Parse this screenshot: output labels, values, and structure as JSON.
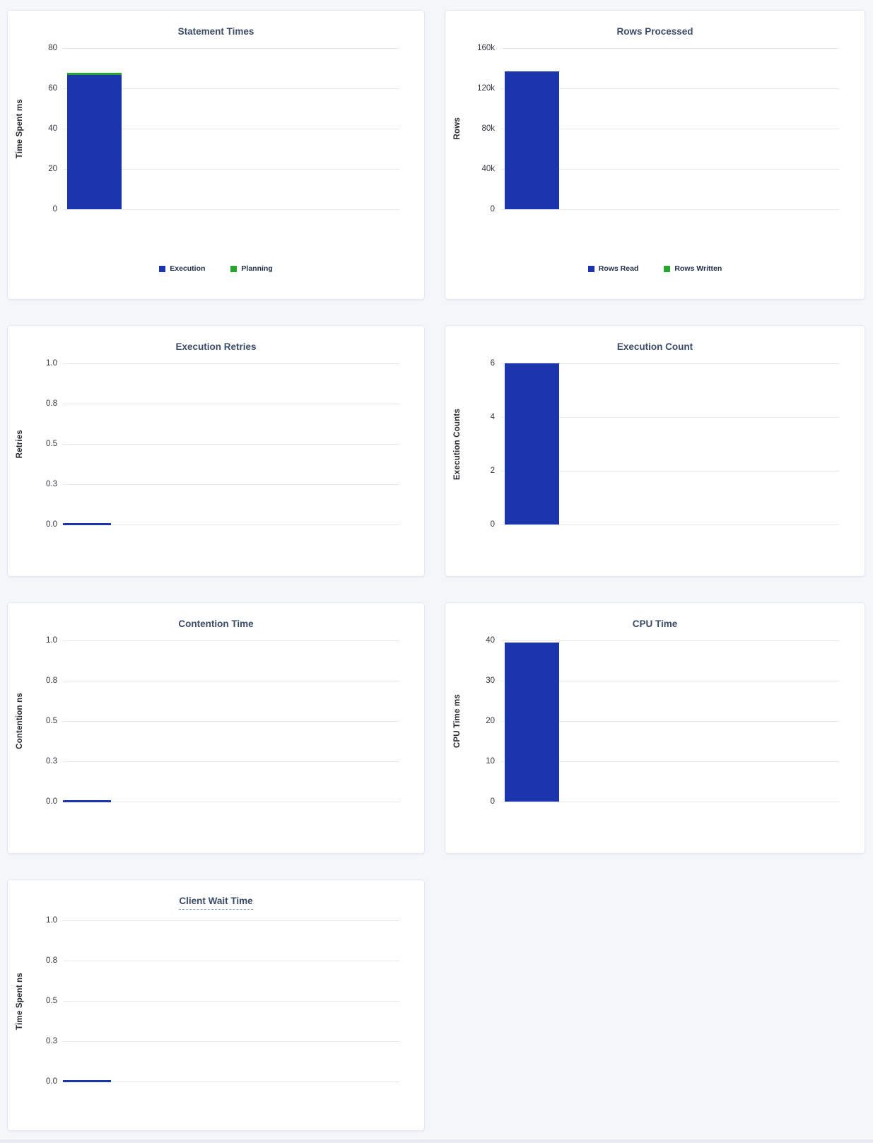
{
  "colors": {
    "blue": "#1B35AD",
    "green": "#28A52E",
    "title": "#3B4C68",
    "background": "#F4F6FA",
    "gridline": "#E8E9EC"
  },
  "chart_data": [
    {
      "type": "bar",
      "title": "Statement Times",
      "ylabel": "Time Spent ms",
      "ylim": [
        0,
        80
      ],
      "yticks_top_to_bottom": [
        "80",
        "60",
        "40",
        "20",
        "0"
      ],
      "series": [
        {
          "name": "Execution",
          "value": 66.8,
          "color": "blue"
        },
        {
          "name": "Planning",
          "value": 0.9,
          "color": "green"
        }
      ],
      "legend": [
        {
          "label": "Execution",
          "color": "blue"
        },
        {
          "label": "Planning",
          "color": "green"
        }
      ],
      "stacked": true,
      "grid": true,
      "legend_position": "bottom-center"
    },
    {
      "type": "bar",
      "title": "Rows Processed",
      "ylabel": "Rows",
      "ylim": [
        0,
        160000
      ],
      "yticks_top_to_bottom": [
        "160k",
        "120k",
        "80k",
        "40k",
        "0"
      ],
      "series": [
        {
          "name": "Rows Read",
          "value": 137000,
          "color": "blue"
        },
        {
          "name": "Rows Written",
          "value": 0,
          "color": "green"
        }
      ],
      "legend": [
        {
          "label": "Rows Read",
          "color": "blue"
        },
        {
          "label": "Rows Written",
          "color": "green"
        }
      ],
      "stacked": true,
      "grid": true,
      "legend_position": "bottom-center"
    },
    {
      "type": "bar",
      "title": "Execution Retries",
      "ylabel": "Retries",
      "ylim": [
        0,
        1
      ],
      "yticks_top_to_bottom": [
        "1.0",
        "0.8",
        "0.5",
        "0.3",
        "0.0"
      ],
      "series": [
        {
          "name": "Retries",
          "value": 0,
          "color": "blue"
        }
      ],
      "grid": true
    },
    {
      "type": "bar",
      "title": "Execution Count",
      "ylabel": "Execution Counts",
      "ylim": [
        0,
        6
      ],
      "yticks_top_to_bottom": [
        "6",
        "4",
        "2",
        "0"
      ],
      "series": [
        {
          "name": "Execution Count",
          "value": 6,
          "color": "blue"
        }
      ],
      "grid": true
    },
    {
      "type": "bar",
      "title": "Contention Time",
      "ylabel": "Contention ns",
      "ylim": [
        0,
        1
      ],
      "yticks_top_to_bottom": [
        "1.0",
        "0.8",
        "0.5",
        "0.3",
        "0.0"
      ],
      "series": [
        {
          "name": "Contention",
          "value": 0,
          "color": "blue"
        }
      ],
      "grid": true
    },
    {
      "type": "bar",
      "title": "CPU Time",
      "ylabel": "CPU Time ms",
      "ylim": [
        0,
        40
      ],
      "yticks_top_to_bottom": [
        "40",
        "30",
        "20",
        "10",
        "0"
      ],
      "series": [
        {
          "name": "CPU Time",
          "value": 39.4,
          "color": "blue"
        }
      ],
      "grid": true
    },
    {
      "type": "bar",
      "title": "Client Wait Time",
      "ylabel": "Time Spent ns",
      "ylim": [
        0,
        1
      ],
      "yticks_top_to_bottom": [
        "1.0",
        "0.8",
        "0.5",
        "0.3",
        "0.0"
      ],
      "series": [
        {
          "name": "Client Wait",
          "value": 0,
          "color": "blue"
        }
      ],
      "title_has_tooltip": true,
      "grid": true
    }
  ]
}
